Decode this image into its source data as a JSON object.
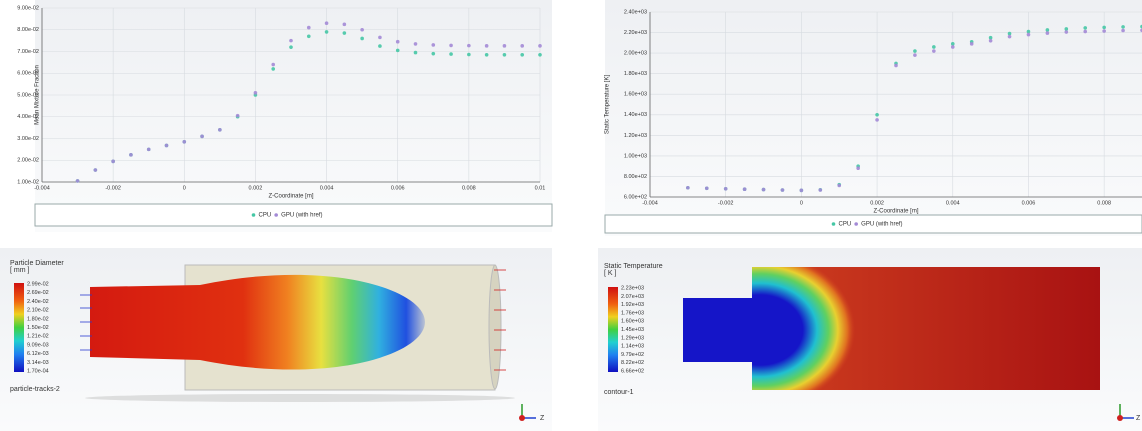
{
  "chart_data": [
    {
      "type": "line",
      "x_label": "Z-Coordinate [m]",
      "y_label": "Mean Mixture Fraction",
      "x": [
        -0.003,
        -0.0025,
        -0.002,
        -0.0015,
        -0.001,
        -0.0005,
        0,
        0.0005,
        0.001,
        0.0015,
        0.002,
        0.0025,
        0.003,
        0.0035,
        0.004,
        0.0045,
        0.005,
        0.0055,
        0.006,
        0.0065,
        0.007,
        0.0075,
        0.008,
        0.0085,
        0.009,
        0.0095,
        0.01
      ],
      "series": [
        {
          "name": "CPU",
          "color": "#45c7a5",
          "values": [
            0.0105,
            0.0155,
            0.0195,
            0.0225,
            0.025,
            0.0268,
            0.0285,
            0.031,
            0.034,
            0.04,
            0.05,
            0.062,
            0.072,
            0.077,
            0.079,
            0.0785,
            0.076,
            0.0725,
            0.0705,
            0.0695,
            0.069,
            0.0688,
            0.0686,
            0.0685,
            0.0685,
            0.0685,
            0.0685
          ]
        },
        {
          "name": "GPU (with href)",
          "color": "#a38ad6",
          "values": [
            0.0105,
            0.0155,
            0.0195,
            0.0225,
            0.025,
            0.0268,
            0.0285,
            0.031,
            0.034,
            0.0405,
            0.051,
            0.064,
            0.075,
            0.081,
            0.083,
            0.0825,
            0.08,
            0.0765,
            0.0745,
            0.0735,
            0.073,
            0.0728,
            0.0727,
            0.0726,
            0.0726,
            0.0726,
            0.0726
          ]
        }
      ],
      "xlim": [
        -0.004,
        0.01
      ],
      "xticks": [
        -0.004,
        -0.002,
        0,
        0.002,
        0.004,
        0.006,
        0.008,
        0.01
      ],
      "ylim": [
        0.01,
        0.09
      ],
      "yticks": [
        {
          "value": 0.01,
          "label": "1.00e-02"
        },
        {
          "value": 0.02,
          "label": "2.00e-02"
        },
        {
          "value": 0.03,
          "label": "3.00e-02"
        },
        {
          "value": 0.04,
          "label": "4.00e-02"
        },
        {
          "value": 0.05,
          "label": "5.00e-02"
        },
        {
          "value": 0.06,
          "label": "6.00e-02"
        },
        {
          "value": 0.07,
          "label": "7.00e-02"
        },
        {
          "value": 0.08,
          "label": "8.00e-02"
        },
        {
          "value": 0.09,
          "label": "9.00e-02"
        }
      ],
      "grid": true
    },
    {
      "type": "line",
      "x_label": "Z-Coordinate [m]",
      "y_label": "Static Temperature [K]",
      "x": [
        -0.003,
        -0.0025,
        -0.002,
        -0.0015,
        -0.001,
        -0.0005,
        0,
        0.0005,
        0.001,
        0.0015,
        0.002,
        0.0025,
        0.003,
        0.0035,
        0.004,
        0.0045,
        0.005,
        0.0055,
        0.006,
        0.0065,
        0.007,
        0.0075,
        0.008,
        0.0085,
        0.009
      ],
      "series": [
        {
          "name": "CPU",
          "color": "#45c7a5",
          "values": [
            690,
            685,
            680,
            676,
            672,
            668,
            665,
            670,
            720,
            900,
            1400,
            1900,
            2020,
            2060,
            2090,
            2110,
            2150,
            2190,
            2210,
            2225,
            2235,
            2245,
            2250,
            2255,
            2258
          ]
        },
        {
          "name": "GPU (with href)",
          "color": "#a38ad6",
          "values": [
            690,
            685,
            680,
            676,
            672,
            668,
            665,
            668,
            712,
            880,
            1350,
            1880,
            1980,
            2020,
            2060,
            2090,
            2120,
            2160,
            2180,
            2195,
            2205,
            2210,
            2215,
            2220,
            2222
          ]
        }
      ],
      "xlim": [
        -0.004,
        0.009
      ],
      "xticks": [
        -0.004,
        -0.002,
        0,
        0.002,
        0.004,
        0.006,
        0.008
      ],
      "ylim": [
        600,
        2400
      ],
      "yticks": [
        {
          "value": 600,
          "label": "6.00e+02"
        },
        {
          "value": 800,
          "label": "8.00e+02"
        },
        {
          "value": 1000,
          "label": "1.00e+03"
        },
        {
          "value": 1200,
          "label": "1.20e+03"
        },
        {
          "value": 1400,
          "label": "1.40e+03"
        },
        {
          "value": 1600,
          "label": "1.60e+03"
        },
        {
          "value": 1800,
          "label": "1.80e+03"
        },
        {
          "value": 2000,
          "label": "2.00e+03"
        },
        {
          "value": 2200,
          "label": "2.20e+03"
        },
        {
          "value": 2400,
          "label": "2.40e+03"
        }
      ],
      "grid": true
    }
  ],
  "panels": [
    {
      "colorbar": {
        "title": "Particle Diameter",
        "unit": "[ mm ]",
        "labels": [
          "2.99e-02",
          "2.69e-02",
          "2.40e-02",
          "2.10e-02",
          "1.80e-02",
          "1.50e-02",
          "1.21e-02",
          "9.09e-03",
          "6.12e-03",
          "3.14e-03",
          "1.70e-04"
        ]
      },
      "caption": "particle-tracks-2",
      "axis": "Z"
    },
    {
      "colorbar": {
        "title": "Static Temperature",
        "unit": "[ K ]",
        "labels": [
          "2.23e+03",
          "2.07e+03",
          "1.92e+03",
          "1.76e+03",
          "1.60e+03",
          "1.45e+03",
          "1.29e+03",
          "1.14e+03",
          "9.79e+02",
          "8.22e+02",
          "6.66e+02"
        ]
      },
      "caption": "contour-1",
      "axis": "Z"
    }
  ]
}
